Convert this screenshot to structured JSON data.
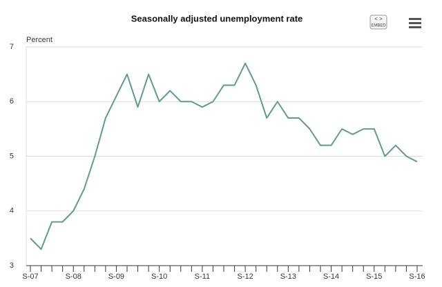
{
  "chart_data": {
    "type": "line",
    "title": "Seasonally adjusted unemployment rate",
    "y_label": "Percent",
    "categories": [
      "S-07",
      null,
      null,
      null,
      "S-08",
      null,
      null,
      null,
      "S-09",
      null,
      null,
      null,
      "S-10",
      null,
      null,
      null,
      "S-11",
      null,
      null,
      null,
      "S-12",
      null,
      null,
      null,
      "S-13",
      null,
      null,
      null,
      "S-14",
      null,
      null,
      null,
      "S-15",
      null,
      null,
      null,
      "S-16"
    ],
    "values": [
      3.5,
      3.3,
      3.8,
      3.8,
      4.0,
      4.4,
      5.0,
      5.7,
      6.1,
      6.5,
      5.9,
      6.5,
      6.0,
      6.2,
      6.0,
      6.0,
      5.9,
      6.0,
      6.3,
      6.3,
      6.7,
      6.3,
      5.7,
      6.0,
      5.7,
      5.7,
      5.5,
      5.2,
      5.2,
      5.5,
      5.4,
      5.5,
      5.5,
      5.0,
      5.2,
      5.0,
      4.9
    ],
    "color": "#5f9c87",
    "ylim": [
      3,
      7
    ],
    "yticks": [
      3,
      4,
      5,
      6,
      7
    ],
    "grid": true
  },
  "toolbar": {
    "embed_icon": "< >",
    "embed_label": "EMBED"
  }
}
